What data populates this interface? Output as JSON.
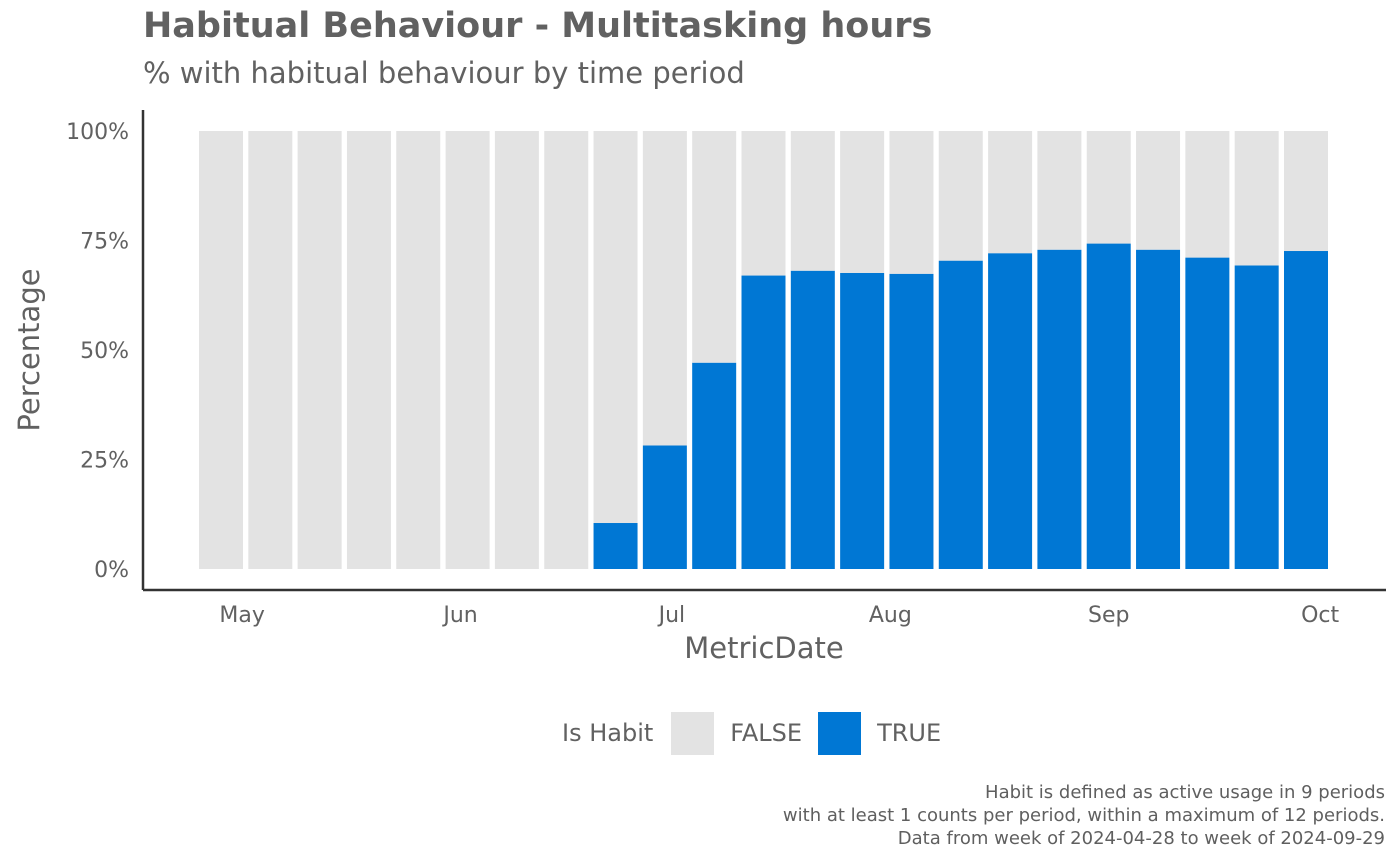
{
  "title": "Habitual Behaviour - Multitasking hours",
  "subtitle": "% with habitual behaviour by time period",
  "legend": {
    "title": "Is Habit",
    "items": [
      {
        "label": "FALSE",
        "color": "#e3e3e3"
      },
      {
        "label": "TRUE",
        "color": "#0077d4"
      }
    ]
  },
  "caption": {
    "line1": "Habit is defined as active usage in 9 periods",
    "line2": "with at least 1 counts per period, within a maximum of 12 periods.",
    "line3": "Data from week of 2024-04-28 to week of 2024-09-29"
  },
  "chart_data": {
    "type": "bar",
    "stacked": true,
    "xlabel": "MetricDate",
    "ylabel": "Percentage",
    "ylim": [
      0,
      100
    ],
    "yticks": [
      "0%",
      "25%",
      "50%",
      "75%",
      "100%"
    ],
    "yticks_values": [
      0,
      25,
      50,
      75,
      100
    ],
    "x_tick_labels": [
      "May",
      "Jun",
      "Jul",
      "Aug",
      "Sep",
      "Oct"
    ],
    "x_tick_dates": [
      "2024-05-01",
      "2024-06-01",
      "2024-07-01",
      "2024-08-01",
      "2024-09-01",
      "2024-10-01"
    ],
    "categories": [
      "2024-04-28",
      "2024-05-05",
      "2024-05-12",
      "2024-05-19",
      "2024-05-26",
      "2024-06-02",
      "2024-06-09",
      "2024-06-16",
      "2024-06-23",
      "2024-06-30",
      "2024-07-07",
      "2024-07-14",
      "2024-07-21",
      "2024-07-28",
      "2024-08-04",
      "2024-08-11",
      "2024-08-18",
      "2024-08-25",
      "2024-09-01",
      "2024-09-08",
      "2024-09-15",
      "2024-09-22",
      "2024-09-29"
    ],
    "series": [
      {
        "name": "TRUE",
        "color": "#0077d4",
        "values": [
          0,
          0,
          0,
          0,
          0,
          0,
          0,
          0,
          10.5,
          28.2,
          47.1,
          67.0,
          68.1,
          67.6,
          67.4,
          70.4,
          72.1,
          72.9,
          74.3,
          72.9,
          71.1,
          69.3,
          72.6
        ]
      },
      {
        "name": "FALSE",
        "color": "#e3e3e3",
        "values": [
          100,
          100,
          100,
          100,
          100,
          100,
          100,
          100,
          89.5,
          71.8,
          52.9,
          33.0,
          31.9,
          32.4,
          32.6,
          29.6,
          27.9,
          27.1,
          25.7,
          27.1,
          28.9,
          30.7,
          27.4
        ]
      }
    ],
    "grid": false,
    "legend_position": "bottom"
  }
}
